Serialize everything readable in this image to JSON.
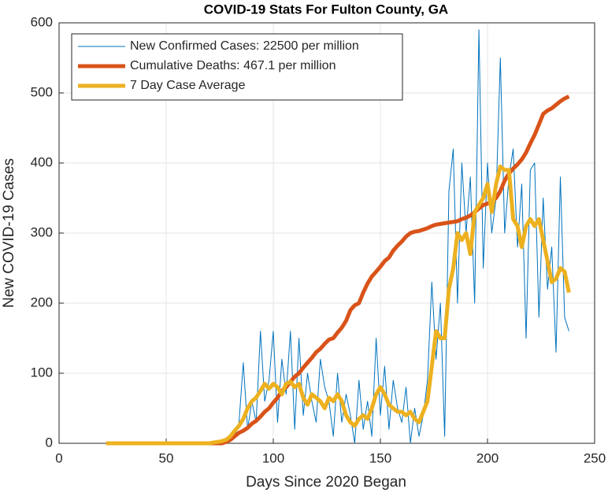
{
  "chart_data": {
    "type": "line",
    "title": "COVID-19 Stats For Fulton County, GA",
    "x_label": "Days Since 2020 Began",
    "y_label": "New COVID-19 Cases",
    "xlim": [
      0,
      250
    ],
    "ylim": [
      0,
      600
    ],
    "xticks": [
      0,
      50,
      100,
      150,
      200,
      250
    ],
    "yticks": [
      0,
      100,
      200,
      300,
      400,
      500,
      600
    ],
    "grid": true,
    "legend": "upper-left",
    "x": [
      22,
      24,
      26,
      28,
      30,
      32,
      34,
      36,
      38,
      40,
      42,
      44,
      46,
      48,
      50,
      52,
      54,
      56,
      58,
      60,
      62,
      64,
      66,
      68,
      70,
      72,
      74,
      76,
      78,
      80,
      82,
      84,
      86,
      88,
      90,
      92,
      94,
      96,
      98,
      100,
      102,
      104,
      106,
      108,
      110,
      112,
      114,
      116,
      118,
      120,
      122,
      124,
      126,
      128,
      130,
      132,
      134,
      136,
      138,
      140,
      142,
      144,
      146,
      148,
      150,
      152,
      154,
      156,
      158,
      160,
      162,
      164,
      166,
      168,
      170,
      172,
      174,
      176,
      178,
      180,
      182,
      184,
      186,
      188,
      190,
      192,
      194,
      196,
      198,
      200,
      202,
      204,
      206,
      208,
      210,
      212,
      214,
      216,
      218,
      220,
      222,
      224,
      226,
      228,
      230,
      232,
      234,
      236,
      238
    ],
    "series": [
      {
        "name": "New Confirmed Cases: 22500 per million",
        "color": "#0072BD",
        "width": 1,
        "values": [
          0,
          0,
          0,
          0,
          0,
          0,
          0,
          0,
          0,
          0,
          0,
          0,
          0,
          0,
          0,
          0,
          0,
          0,
          0,
          0,
          0,
          0,
          0,
          0,
          0,
          0,
          1,
          0,
          2,
          5,
          10,
          30,
          115,
          20,
          60,
          30,
          160,
          60,
          90,
          160,
          30,
          120,
          70,
          160,
          20,
          150,
          40,
          100,
          60,
          30,
          120,
          80,
          60,
          10,
          100,
          30,
          70,
          40,
          0,
          90,
          20,
          60,
          10,
          150,
          40,
          110,
          20,
          90,
          50,
          30,
          80,
          0,
          50,
          10,
          40,
          90,
          230,
          120,
          200,
          10,
          360,
          420,
          200,
          400,
          300,
          380,
          200,
          590,
          250,
          400,
          300,
          350,
          550,
          300,
          380,
          420,
          280,
          370,
          150,
          390,
          400,
          180,
          350,
          220,
          280,
          130,
          380,
          180,
          160
        ]
      },
      {
        "name": "Cumulative Deaths: 467.1 per million",
        "color": "#D95319",
        "width": 5,
        "values": [
          0,
          0,
          0,
          0,
          0,
          0,
          0,
          0,
          0,
          0,
          0,
          0,
          0,
          0,
          0,
          0,
          0,
          0,
          0,
          0,
          0,
          0,
          0,
          0,
          0,
          0,
          0,
          0,
          2,
          5,
          10,
          15,
          18,
          22,
          28,
          32,
          38,
          45,
          50,
          58,
          65,
          75,
          80,
          88,
          95,
          100,
          108,
          115,
          122,
          130,
          135,
          142,
          148,
          150,
          158,
          165,
          175,
          190,
          197,
          200,
          215,
          228,
          238,
          245,
          252,
          260,
          265,
          275,
          282,
          288,
          295,
          300,
          302,
          303,
          305,
          307,
          310,
          312,
          313,
          314,
          315,
          316,
          317,
          320,
          322,
          325,
          330,
          335,
          340,
          342,
          345,
          350,
          360,
          375,
          385,
          392,
          398,
          405,
          415,
          428,
          440,
          455,
          470,
          475,
          478,
          483,
          488,
          492,
          495
        ]
      },
      {
        "name": "7 Day Case Average",
        "color": "#EDB120",
        "width": 5,
        "values": [
          0,
          0,
          0,
          0,
          0,
          0,
          0,
          0,
          0,
          0,
          0,
          0,
          0,
          0,
          0,
          0,
          0,
          0,
          0,
          0,
          0,
          0,
          0,
          0,
          0,
          1,
          2,
          3,
          5,
          10,
          18,
          25,
          35,
          50,
          60,
          65,
          75,
          85,
          78,
          85,
          80,
          70,
          85,
          88,
          80,
          85,
          65,
          55,
          70,
          65,
          60,
          50,
          65,
          60,
          70,
          60,
          40,
          30,
          25,
          35,
          40,
          35,
          50,
          70,
          80,
          70,
          55,
          50,
          45,
          45,
          40,
          45,
          35,
          30,
          45,
          60,
          110,
          160,
          150,
          150,
          220,
          250,
          300,
          290,
          300,
          270,
          330,
          340,
          350,
          370,
          330,
          370,
          395,
          390,
          390,
          320,
          310,
          280,
          310,
          320,
          310,
          320,
          290,
          260,
          230,
          235,
          250,
          245,
          215
        ]
      }
    ]
  }
}
